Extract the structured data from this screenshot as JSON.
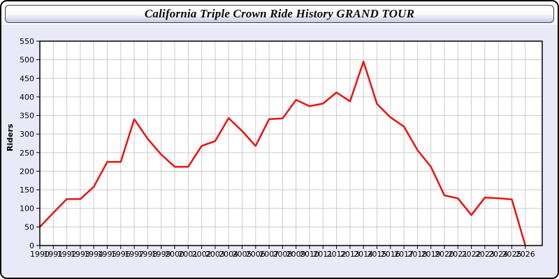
{
  "window": {
    "title": "California Triple Crown Ride History GRAND TOUR"
  },
  "colors": {
    "line": "#ee1010",
    "grid": "#cccccc",
    "plot_background": "#ffffff",
    "page_background": "#e9e9f8",
    "frame": "#000000",
    "header_gradient_top": "#ffffff",
    "header_gradient_bottom": "#c7c7e8"
  },
  "chart_data": {
    "type": "line",
    "title": "California Triple Crown Ride History GRAND TOUR",
    "xlabel": "",
    "ylabel": "Riders",
    "ylim": [
      0,
      550
    ],
    "ytick_step": 50,
    "grid": true,
    "legend": "none",
    "x": [
      1990,
      1991,
      1992,
      1993,
      1994,
      1995,
      1996,
      1997,
      1998,
      1999,
      2000,
      2001,
      2002,
      2003,
      2004,
      2005,
      2006,
      2007,
      2008,
      2009,
      2010,
      2011,
      2012,
      2013,
      2014,
      2015,
      2016,
      2017,
      2018,
      2019,
      2020,
      2021,
      2022,
      2023,
      2024,
      2025,
      2026
    ],
    "series": [
      {
        "name": "Riders",
        "color": "#ee1010",
        "values": [
          50,
          88,
          125,
          125,
          158,
          225,
          225,
          340,
          287,
          245,
          212,
          212,
          268,
          281,
          343,
          308,
          268,
          340,
          342,
          392,
          375,
          382,
          412,
          388,
          495,
          381,
          345,
          320,
          257,
          212,
          135,
          127,
          82,
          129,
          127,
          124,
          0
        ]
      }
    ]
  }
}
